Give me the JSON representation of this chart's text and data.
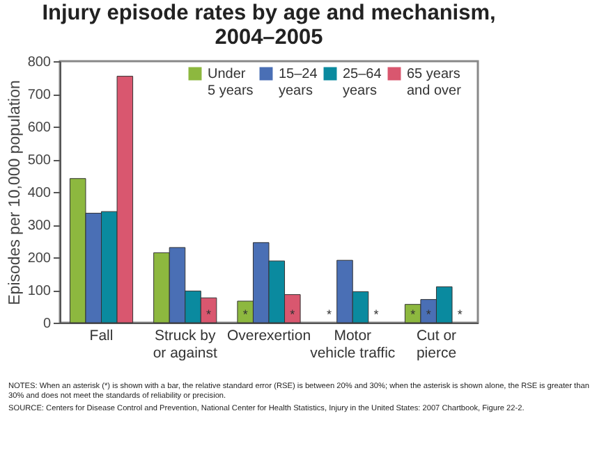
{
  "chart_data": {
    "type": "bar",
    "title": "Injury episode rates by age and mechanism,\n2004–2005",
    "ylabel": "Episodes per 10,000 population",
    "categories": [
      "Fall",
      "Struck by\nor against",
      "Overexertion",
      "Motor\nvehicle traffic",
      "Cut or\npierce"
    ],
    "series": [
      {
        "name": "Under\n5 years",
        "color": "#8db83f",
        "values": [
          441,
          214,
          66,
          null,
          56
        ],
        "value_labels": [
          null,
          null,
          "*",
          "*",
          "*"
        ]
      },
      {
        "name": "15–24\nyears",
        "color": "#4a6fb5",
        "values": [
          335,
          230,
          245,
          191,
          71
        ],
        "value_labels": [
          null,
          null,
          null,
          null,
          "*"
        ]
      },
      {
        "name": "25–64\nyears",
        "color": "#0a8a9f",
        "values": [
          340,
          97,
          189,
          95,
          110
        ],
        "value_labels": [
          null,
          null,
          null,
          null,
          null
        ]
      },
      {
        "name": "65 years\nand over",
        "color": "#d9576f",
        "values": [
          754,
          76,
          86,
          null,
          null
        ],
        "value_labels": [
          null,
          "*",
          "*",
          "*",
          "*"
        ]
      }
    ],
    "ylim": [
      0,
      800
    ],
    "yticks": [
      0,
      100,
      200,
      300,
      400,
      500,
      600,
      700,
      800
    ],
    "grid": false,
    "legend": "top right",
    "annotations": [
      "NOTES: When an asterisk (*) is shown with a bar, the relative standard error (RSE) is between 20% and 30%; when the asterisk is shown alone, the RSE is greater than 30% and does not meet the standards of reliability or precision.",
      "SOURCE: Centers for Disease Control and Prevention, National Center for Health Statistics, Injury in the United States: 2007 Chartbook, Figure 22-2."
    ]
  }
}
